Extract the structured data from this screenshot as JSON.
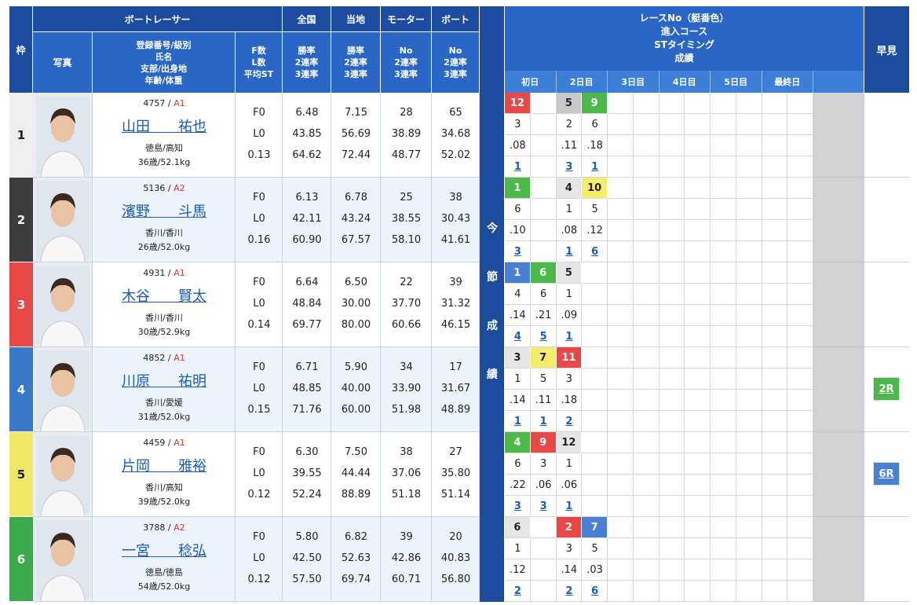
{
  "header": {
    "frame": "枠",
    "racer": "ボートレーサー",
    "national": "全国",
    "local": "当地",
    "motor": "モーター",
    "boat": "ボート",
    "photo": "写真",
    "profile": [
      "登録番号/級別",
      "氏名",
      "支部/出身地",
      "年齢/体重"
    ],
    "fl": [
      "F数",
      "L数",
      "平均ST"
    ],
    "national_sub": [
      "勝率",
      "2連率",
      "3連率"
    ],
    "local_sub": [
      "勝率",
      "2連率",
      "3連率"
    ],
    "motor_sub": [
      "No",
      "2連率",
      "3連率"
    ],
    "boat_sub": [
      "No",
      "2連率",
      "3連率"
    ],
    "results_title": [
      "レースNo（艇番色）",
      "進入コース",
      "STタイミング",
      "成績"
    ],
    "days": [
      "初日",
      "2日目",
      "3日目",
      "4日目",
      "5日目",
      "最終日"
    ],
    "side": [
      "今",
      "節",
      "成",
      "績"
    ],
    "hayami": "早見"
  },
  "racers": [
    {
      "frame": 1,
      "color": "#eeeeee",
      "reg": "4757",
      "class": "A1",
      "name": "山田　　祐也",
      "branch": "徳島/高知",
      "age_weight": "36歳/52.1kg",
      "fl": [
        "F0",
        "L0",
        "0.13"
      ],
      "national": [
        "6.48",
        "43.85",
        "64.62"
      ],
      "local": [
        "7.15",
        "56.69",
        "72.44"
      ],
      "motor": [
        "28",
        "38.89",
        "48.77"
      ],
      "boat": [
        "65",
        "34.68",
        "52.02"
      ],
      "results": [
        {
          "race": "12",
          "color": "#e84848",
          "course": "3",
          "st": ".08",
          "rank": "1"
        },
        null,
        {
          "race": "5",
          "color": "#c8c8c8",
          "course": "2",
          "st": ".11",
          "rank": "3"
        },
        {
          "race": "9",
          "color": "#4cb84c",
          "course": "6",
          "st": ".18",
          "rank": "1"
        },
        null,
        null,
        null,
        null,
        null,
        null,
        null,
        null
      ],
      "hayami": null
    },
    {
      "frame": 2,
      "color": "#3c3c3c",
      "reg": "5136",
      "class": "A2",
      "name": "濱野　　斗馬",
      "branch": "香川/香川",
      "age_weight": "26歳/52.0kg",
      "fl": [
        "F0",
        "L0",
        "0.16"
      ],
      "national": [
        "6.13",
        "42.11",
        "60.90"
      ],
      "local": [
        "6.78",
        "43.24",
        "67.57"
      ],
      "motor": [
        "25",
        "38.55",
        "58.10"
      ],
      "boat": [
        "38",
        "30.43",
        "41.61"
      ],
      "results": [
        {
          "race": "1",
          "color": "#4cb84c",
          "course": "6",
          "st": ".10",
          "rank": "3"
        },
        null,
        {
          "race": "4",
          "color": "#e6e6e6",
          "course": "1",
          "st": ".08",
          "rank": "1"
        },
        {
          "race": "10",
          "color": "#f4ec6c",
          "course": "5",
          "st": ".12",
          "rank": "6"
        },
        null,
        null,
        null,
        null,
        null,
        null,
        null,
        null
      ],
      "hayami": null
    },
    {
      "frame": 3,
      "color": "#e84848",
      "reg": "4931",
      "class": "A1",
      "name": "木谷　　賢太",
      "branch": "香川/香川",
      "age_weight": "30歳/52.9kg",
      "fl": [
        "F0",
        "L0",
        "0.14"
      ],
      "national": [
        "6.64",
        "48.84",
        "69.77"
      ],
      "local": [
        "6.50",
        "30.00",
        "80.00"
      ],
      "motor": [
        "22",
        "37.70",
        "60.66"
      ],
      "boat": [
        "39",
        "31.32",
        "46.15"
      ],
      "results": [
        {
          "race": "1",
          "color": "#4a80d4",
          "course": "4",
          "st": ".14",
          "rank": "4"
        },
        {
          "race": "6",
          "color": "#4cb84c",
          "course": "6",
          "st": ".21",
          "rank": "5"
        },
        {
          "race": "5",
          "color": "#e6e6e6",
          "course": "1",
          "st": ".09",
          "rank": "1"
        },
        null,
        null,
        null,
        null,
        null,
        null,
        null,
        null,
        null
      ],
      "hayami": null
    },
    {
      "frame": 4,
      "color": "#3a78c8",
      "reg": "4852",
      "class": "A1",
      "name": "川原　　祐明",
      "branch": "香川/愛媛",
      "age_weight": "31歳/52.0kg",
      "fl": [
        "F0",
        "L0",
        "0.15"
      ],
      "national": [
        "6.71",
        "48.85",
        "71.76"
      ],
      "local": [
        "5.90",
        "40.00",
        "60.00"
      ],
      "motor": [
        "34",
        "33.90",
        "51.98"
      ],
      "boat": [
        "17",
        "31.67",
        "48.89"
      ],
      "results": [
        {
          "race": "3",
          "color": "#e6e6e6",
          "course": "1",
          "st": ".14",
          "rank": "1"
        },
        {
          "race": "7",
          "color": "#f4ec6c",
          "course": "5",
          "st": ".11",
          "rank": "1"
        },
        {
          "race": "11",
          "color": "#e84848",
          "course": "3",
          "st": ".18",
          "rank": "2"
        },
        null,
        null,
        null,
        null,
        null,
        null,
        null,
        null,
        null
      ],
      "hayami": {
        "label": "2R",
        "color": "#4cb84c"
      }
    },
    {
      "frame": 5,
      "color": "#f0e868",
      "reg": "4459",
      "class": "A1",
      "name": "片岡　　雅裕",
      "branch": "香川/高知",
      "age_weight": "39歳/52.0kg",
      "fl": [
        "F0",
        "L0",
        "0.12"
      ],
      "national": [
        "6.30",
        "39.55",
        "52.24"
      ],
      "local": [
        "7.50",
        "44.44",
        "88.89"
      ],
      "motor": [
        "38",
        "37.06",
        "51.18"
      ],
      "boat": [
        "27",
        "35.80",
        "51.14"
      ],
      "results": [
        {
          "race": "4",
          "color": "#4cb84c",
          "course": "6",
          "st": ".22",
          "rank": "3"
        },
        {
          "race": "9",
          "color": "#e84848",
          "course": "3",
          "st": ".06",
          "rank": "3"
        },
        {
          "race": "12",
          "color": "#e6e6e6",
          "course": "1",
          "st": ".06",
          "rank": "1"
        },
        null,
        null,
        null,
        null,
        null,
        null,
        null,
        null,
        null
      ],
      "hayami": {
        "label": "6R",
        "color": "#4a80d4"
      }
    },
    {
      "frame": 6,
      "color": "#3caa4c",
      "reg": "3788",
      "class": "A2",
      "name": "一宮　　稔弘",
      "branch": "徳島/徳島",
      "age_weight": "54歳/52.0kg",
      "fl": [
        "F0",
        "L0",
        "0.12"
      ],
      "national": [
        "5.80",
        "42.50",
        "57.50"
      ],
      "local": [
        "6.82",
        "52.63",
        "69.74"
      ],
      "motor": [
        "39",
        "42.86",
        "60.71"
      ],
      "boat": [
        "20",
        "40.83",
        "56.80"
      ],
      "results": [
        {
          "race": "6",
          "color": "#e6e6e6",
          "course": "1",
          "st": ".12",
          "rank": "2"
        },
        null,
        {
          "race": "2",
          "color": "#e84848",
          "course": "3",
          "st": ".14",
          "rank": "2"
        },
        {
          "race": "7",
          "color": "#4a80d4",
          "course": "5",
          "st": ".03",
          "rank": "6"
        },
        null,
        null,
        null,
        null,
        null,
        null,
        null,
        null
      ],
      "hayami": null
    }
  ]
}
